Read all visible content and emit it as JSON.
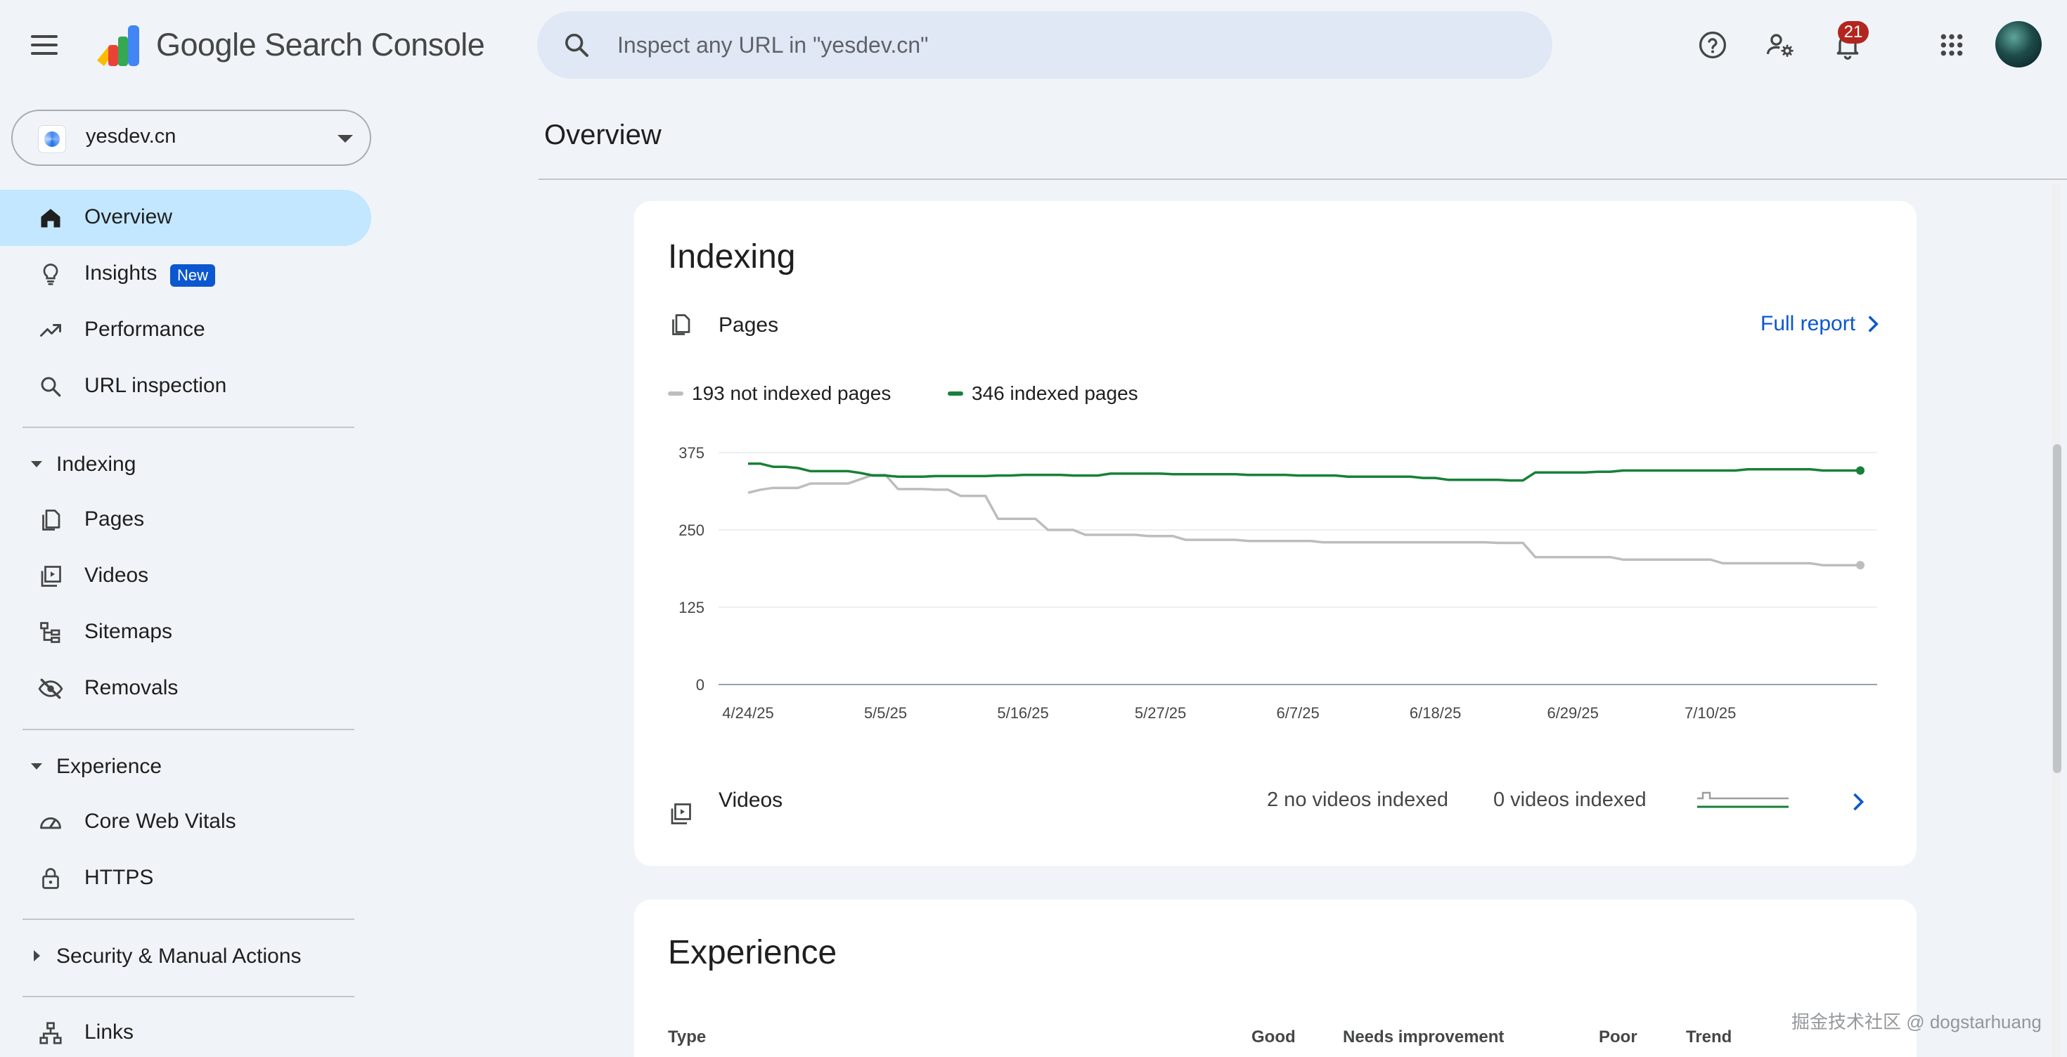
{
  "header": {
    "app_title": "Google Search Console",
    "search_placeholder": "Inspect any URL in \"yesdev.cn\"",
    "notification_count": "21"
  },
  "sidebar": {
    "property": "yesdev.cn",
    "items": [
      {
        "label": "Overview",
        "icon": "home-icon",
        "active": true
      },
      {
        "label": "Insights",
        "icon": "lightbulb-icon",
        "chip": "New"
      },
      {
        "label": "Performance",
        "icon": "trending-up-icon"
      },
      {
        "label": "URL inspection",
        "icon": "search-icon"
      }
    ],
    "indexing": {
      "label": "Indexing",
      "items": [
        {
          "label": "Pages",
          "icon": "pages-icon"
        },
        {
          "label": "Videos",
          "icon": "video-icon"
        },
        {
          "label": "Sitemaps",
          "icon": "sitemap-icon"
        },
        {
          "label": "Removals",
          "icon": "eye-off-icon"
        }
      ]
    },
    "experience": {
      "label": "Experience",
      "items": [
        {
          "label": "Core Web Vitals",
          "icon": "speedometer-icon"
        },
        {
          "label": "HTTPS",
          "icon": "lock-icon"
        }
      ]
    },
    "security": {
      "label": "Security & Manual Actions"
    },
    "links": {
      "label": "Links",
      "icon": "links-icon"
    }
  },
  "main": {
    "page_title": "Overview",
    "indexing_card": {
      "title": "Indexing",
      "pages_label": "Pages",
      "full_report": "Full report",
      "legend_not_indexed": "193 not indexed pages",
      "legend_indexed": "346 indexed pages",
      "videos_label": "Videos",
      "videos_not_indexed": "2 no videos indexed",
      "videos_indexed": "0 videos indexed"
    },
    "experience_card": {
      "title": "Experience",
      "columns": [
        "Type",
        "Good",
        "Needs improvement",
        "Poor",
        "Trend"
      ]
    }
  },
  "colors": {
    "indexed": "#188038",
    "not_indexed": "#bdbdbd",
    "accent": "#0b57d0",
    "active_nav": "#c2e7ff"
  },
  "chart_data": {
    "type": "line",
    "x_tick_labels": [
      "4/24/25",
      "5/5/25",
      "5/16/25",
      "5/27/25",
      "6/7/25",
      "6/18/25",
      "6/29/25",
      "7/10/25"
    ],
    "y_tick_labels": [
      "0",
      "125",
      "250",
      "375"
    ],
    "ylim": [
      0,
      375
    ],
    "x_start": "4/24/25",
    "x_end": "7/22/25",
    "grid": true,
    "legend_position": "top-left",
    "series": [
      {
        "name": "346 indexed pages",
        "color": "#188038",
        "values": [
          357,
          357,
          352,
          352,
          350,
          345,
          345,
          345,
          345,
          342,
          338,
          338,
          336,
          336,
          336,
          337,
          337,
          337,
          337,
          337,
          338,
          338,
          339,
          339,
          339,
          339,
          338,
          338,
          338,
          341,
          341,
          341,
          341,
          341,
          340,
          340,
          340,
          340,
          340,
          340,
          339,
          339,
          339,
          339,
          338,
          338,
          338,
          338,
          336,
          336,
          336,
          336,
          336,
          336,
          334,
          334,
          331,
          331,
          331,
          331,
          331,
          330,
          330,
          343,
          343,
          343,
          343,
          343,
          344,
          344,
          346,
          346,
          346,
          346,
          346,
          346,
          346,
          346,
          346,
          346,
          348,
          348,
          348,
          348,
          348,
          348,
          346,
          346,
          346,
          346
        ]
      },
      {
        "name": "193 not indexed pages",
        "color": "#bdbdbd",
        "values": [
          310,
          315,
          318,
          318,
          318,
          325,
          325,
          325,
          325,
          332,
          339,
          339,
          316,
          316,
          316,
          315,
          315,
          305,
          305,
          305,
          268,
          268,
          268,
          268,
          250,
          250,
          250,
          242,
          242,
          242,
          242,
          242,
          240,
          240,
          240,
          234,
          234,
          234,
          234,
          234,
          232,
          232,
          232,
          232,
          232,
          232,
          230,
          230,
          230,
          230,
          230,
          230,
          230,
          230,
          230,
          230,
          230,
          230,
          230,
          230,
          229,
          229,
          229,
          206,
          206,
          206,
          206,
          206,
          206,
          206,
          202,
          202,
          202,
          202,
          202,
          202,
          202,
          202,
          196,
          196,
          196,
          196,
          196,
          196,
          196,
          196,
          193,
          193,
          193,
          193
        ]
      }
    ]
  },
  "footer": {
    "watermark": "掘金技术社区 @ dogstarhuang"
  }
}
